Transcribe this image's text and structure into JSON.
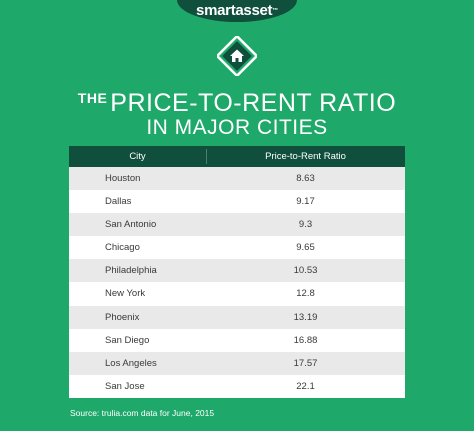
{
  "brand": {
    "name": "smartasset",
    "mark": "™"
  },
  "header": {
    "title_prefix": "THE",
    "title_main": "PRICE-TO-RENT RATIO",
    "title_line2": "IN MAJOR CITIES"
  },
  "icons": {
    "home": "home-icon"
  },
  "colors": {
    "background": "#1ea96a",
    "header_row": "#0f4f3c",
    "row_stripe": "#e9e9e9"
  },
  "chart_data": {
    "type": "table",
    "columns": [
      "City",
      "Price-to-Rent Ratio"
    ],
    "rows": [
      {
        "city": "Houston",
        "ratio": "8.63"
      },
      {
        "city": "Dallas",
        "ratio": "9.17"
      },
      {
        "city": "San Antonio",
        "ratio": "9.3"
      },
      {
        "city": "Chicago",
        "ratio": "9.65"
      },
      {
        "city": "Philadelphia",
        "ratio": "10.53"
      },
      {
        "city": "New York",
        "ratio": "12.8"
      },
      {
        "city": "Phoenix",
        "ratio": "13.19"
      },
      {
        "city": "San Diego",
        "ratio": "16.88"
      },
      {
        "city": "Los Angeles",
        "ratio": "17.57"
      },
      {
        "city": "San Jose",
        "ratio": "22.1"
      }
    ]
  },
  "source": "Source: trulia.com data for June, 2015"
}
